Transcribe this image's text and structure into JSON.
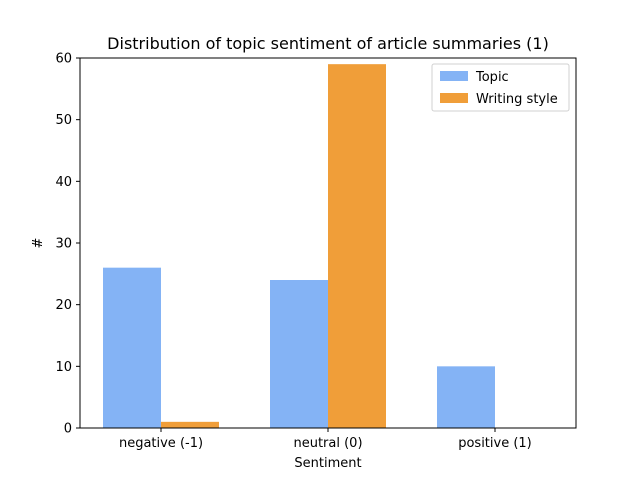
{
  "chart_data": {
    "type": "bar",
    "title": "Distribution of topic sentiment of article summaries (1)",
    "xlabel": "Sentiment",
    "ylabel": "#",
    "categories": [
      "negative (-1)",
      "neutral (0)",
      "positive (1)"
    ],
    "series": [
      {
        "name": "Topic",
        "values": [
          26,
          24,
          10
        ],
        "color": "#84b3f5"
      },
      {
        "name": "Writing style",
        "values": [
          1,
          59,
          0
        ],
        "color": "#f09e39"
      }
    ],
    "ylim": [
      0,
      60
    ],
    "yticks": [
      0,
      10,
      20,
      30,
      40,
      50,
      60
    ],
    "grid": false,
    "legend_position": "top-right"
  }
}
